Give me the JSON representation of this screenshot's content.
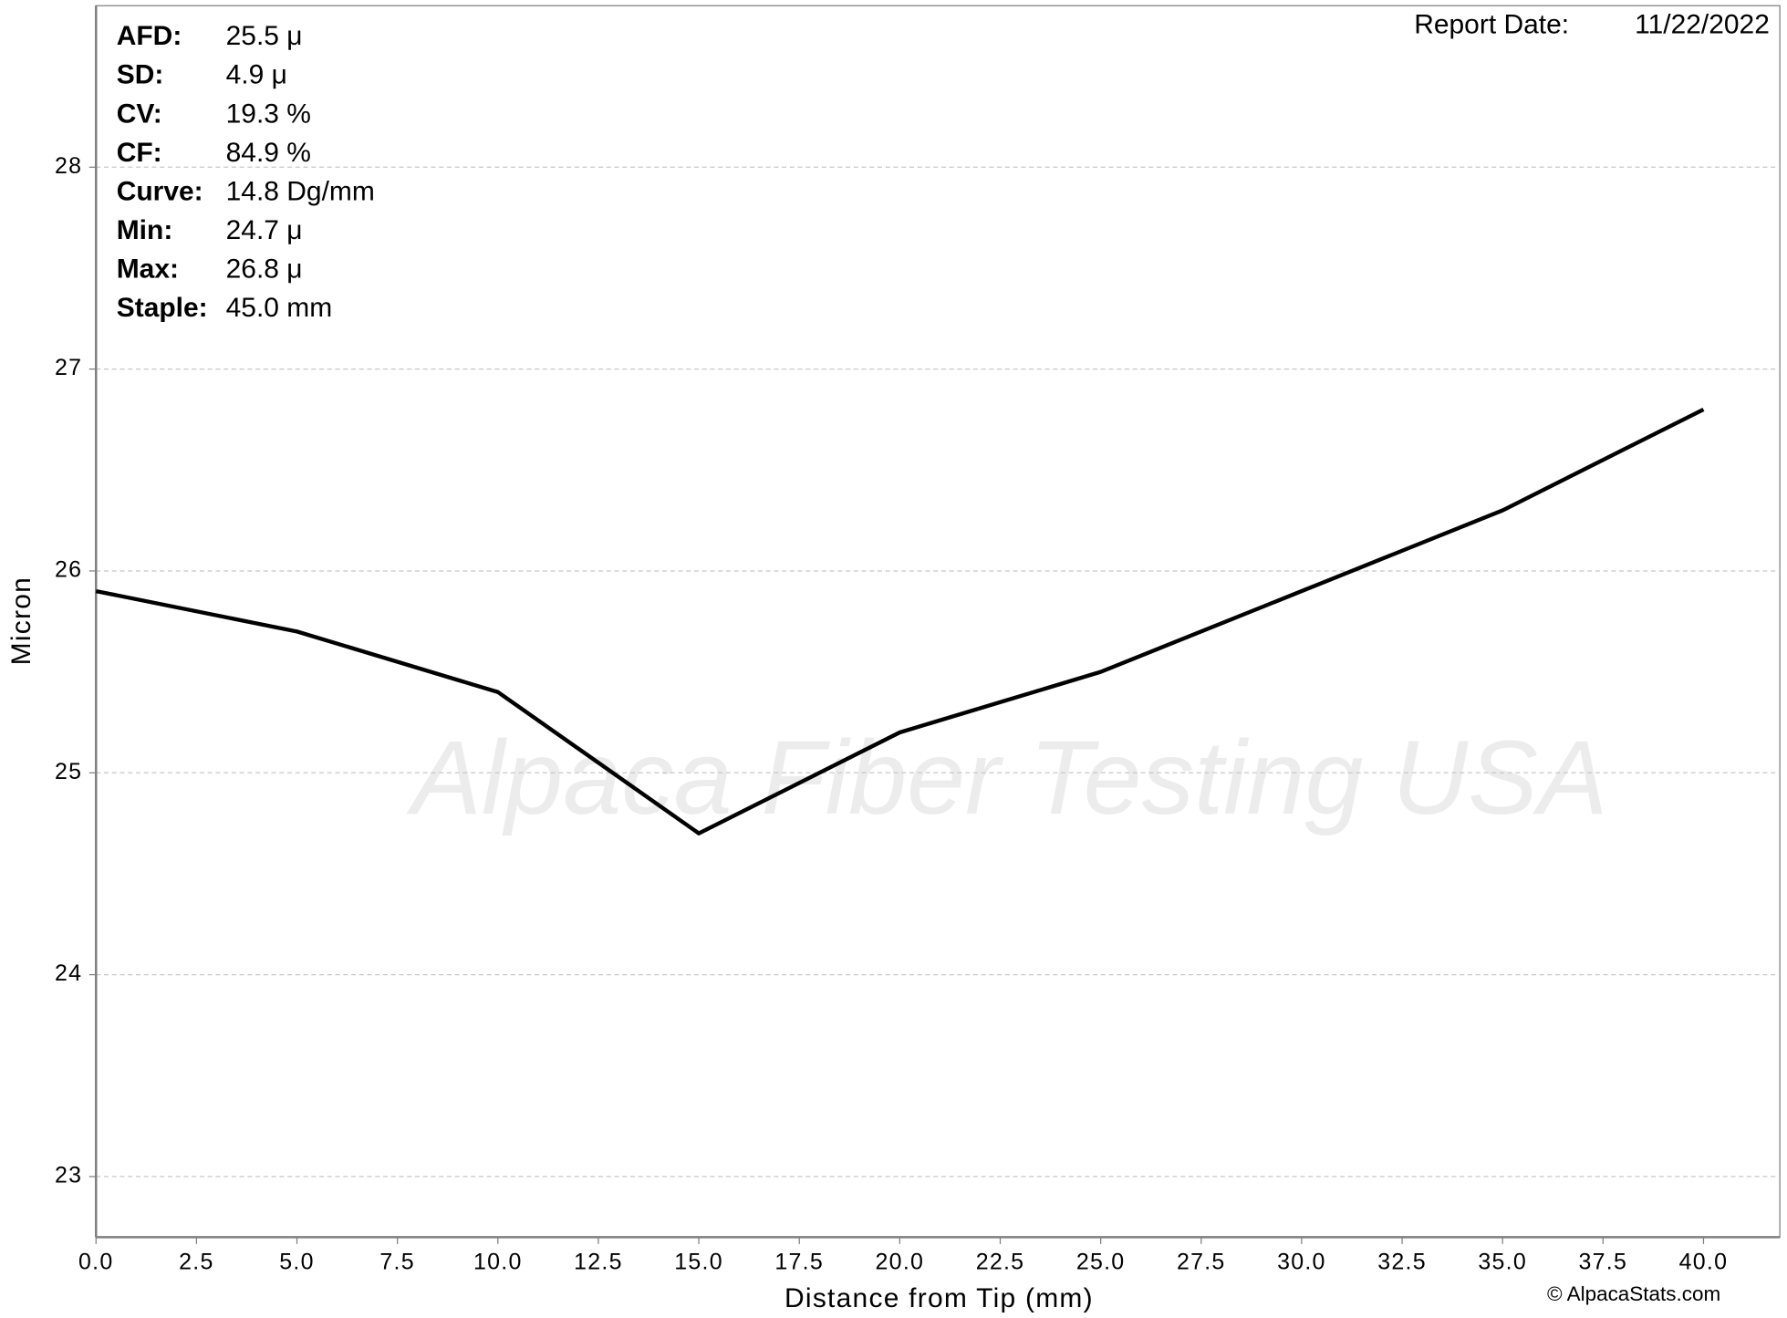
{
  "chart_data": {
    "type": "line",
    "x_label": "Distance from Tip (mm)",
    "y_label": "Micron",
    "x": [
      0,
      5,
      10,
      15,
      20,
      25,
      30,
      35,
      40
    ],
    "values": [
      25.9,
      25.7,
      25.4,
      24.7,
      25.2,
      25.5,
      25.9,
      26.3,
      26.8
    ],
    "color": "#000000",
    "xlim": [
      0,
      41.9
    ],
    "ylim": [
      22.7,
      28.8
    ],
    "xticks": [
      {
        "value": 0,
        "label": "0.0"
      },
      {
        "value": 2.5,
        "label": "2.5"
      },
      {
        "value": 5,
        "label": "5.0"
      },
      {
        "value": 7.5,
        "label": "7.5"
      },
      {
        "value": 10,
        "label": "10.0"
      },
      {
        "value": 12.5,
        "label": "12.5"
      },
      {
        "value": 15,
        "label": "15.0"
      },
      {
        "value": 17.5,
        "label": "17.5"
      },
      {
        "value": 20,
        "label": "20.0"
      },
      {
        "value": 22.5,
        "label": "22.5"
      },
      {
        "value": 25,
        "label": "25.0"
      },
      {
        "value": 27.5,
        "label": "27.5"
      },
      {
        "value": 30,
        "label": "30.0"
      },
      {
        "value": 32.5,
        "label": "32.5"
      },
      {
        "value": 35,
        "label": "35.0"
      },
      {
        "value": 37.5,
        "label": "37.5"
      },
      {
        "value": 40,
        "label": "40.0"
      }
    ],
    "yticks": [
      23,
      24,
      25,
      26,
      27,
      28
    ],
    "grid": true,
    "stats": [
      {
        "label": "AFD:",
        "value": "25.5 μ"
      },
      {
        "label": "SD:",
        "value": "4.9 μ"
      },
      {
        "label": "CV:",
        "value": "19.3 %"
      },
      {
        "label": "CF:",
        "value": "84.9 %"
      },
      {
        "label": "Curve:",
        "value": "14.8 Dg/mm"
      },
      {
        "label": "Min:",
        "value": "24.7 μ"
      },
      {
        "label": "Max:",
        "value": "26.8 μ"
      },
      {
        "label": "Staple:",
        "value": "45.0 mm"
      }
    ],
    "report_date_label": "Report Date:",
    "report_date": "11/22/2022",
    "watermark": "Alpaca Fiber Testing USA",
    "credit": "© AlpacaStats.com"
  }
}
